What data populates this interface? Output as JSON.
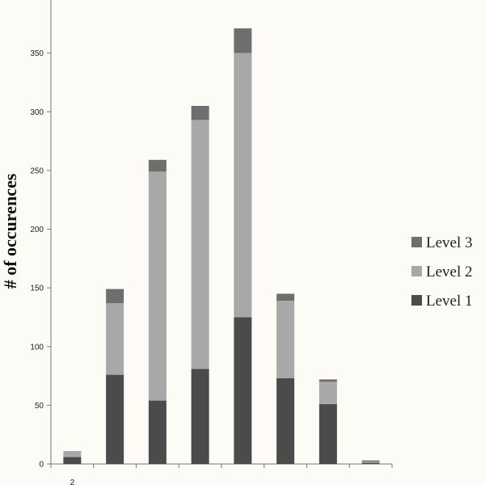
{
  "chart_data": {
    "type": "bar",
    "stacked": true,
    "ylabel": "# of occurences",
    "xlabel": "",
    "ylim": [
      0,
      400
    ],
    "yticks": [
      0,
      50,
      100,
      150,
      200,
      250,
      300,
      350
    ],
    "categories": [
      "2",
      "",
      "",
      "",
      "",
      "",
      "",
      ""
    ],
    "series": [
      {
        "name": "Level 1",
        "color": "#4b4b4b",
        "values": [
          6,
          76,
          54,
          81,
          125,
          73,
          51,
          1
        ]
      },
      {
        "name": "Level 2",
        "color": "#a8a8a8",
        "values": [
          5,
          61,
          195,
          212,
          225,
          66,
          19,
          1
        ]
      },
      {
        "name": "Level 3",
        "color": "#6e6e6e",
        "values": [
          0,
          12,
          10,
          12,
          21,
          6,
          2,
          1
        ]
      }
    ],
    "legend": {
      "position": "right",
      "order": [
        "Level 3",
        "Level 2",
        "Level 1"
      ],
      "labels": [
        "Level 3",
        "Level 2",
        "Level 1"
      ]
    },
    "grid": false
  }
}
